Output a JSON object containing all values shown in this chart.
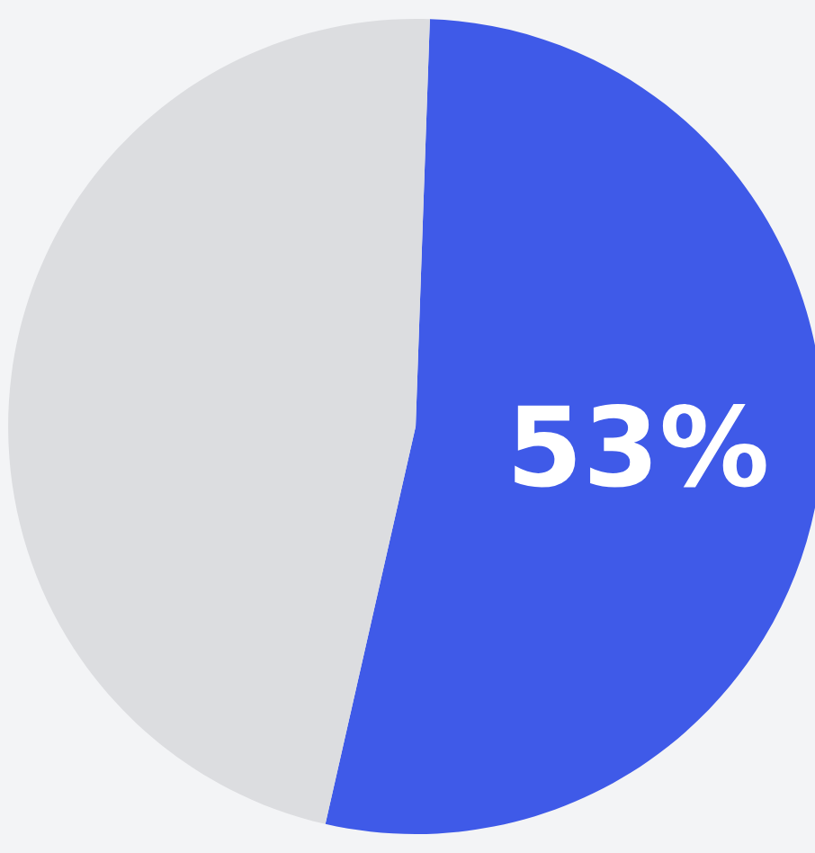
{
  "chart_data": {
    "type": "pie",
    "categories": [
      null,
      null
    ],
    "values": [
      53,
      47
    ],
    "colors": [
      "#3f5ae8",
      "#dcdde0"
    ],
    "value_labels": [
      "53%",
      null
    ]
  }
}
